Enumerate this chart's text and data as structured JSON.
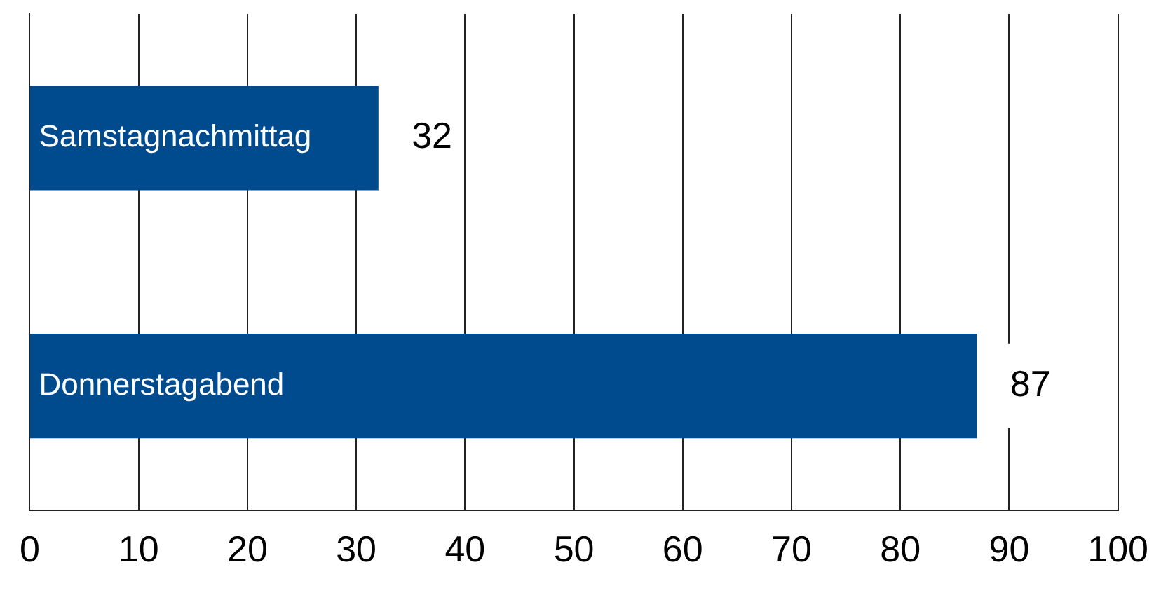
{
  "chart_data": {
    "type": "bar",
    "orientation": "horizontal",
    "categories": [
      "Samstagnachmittag",
      "Donnerstagabend"
    ],
    "values": [
      32,
      87
    ],
    "color": "#004b8d",
    "xlim": [
      0,
      100
    ],
    "xticks": [
      0,
      10,
      20,
      30,
      40,
      50,
      60,
      70,
      80,
      90,
      100
    ],
    "grid": "x",
    "data_labels": true,
    "legend": false
  }
}
